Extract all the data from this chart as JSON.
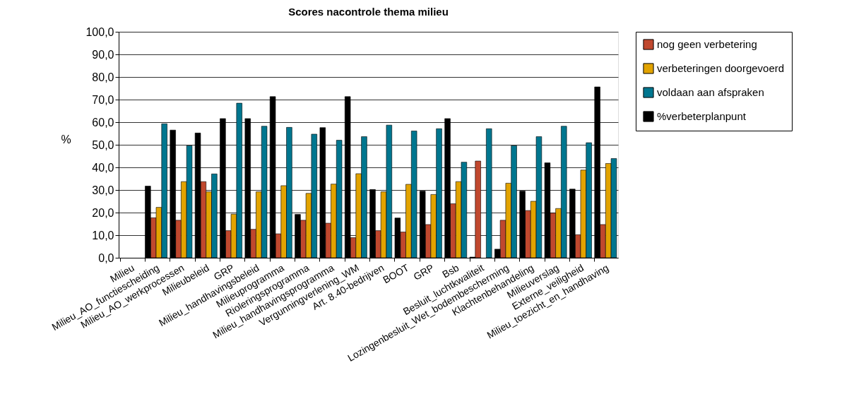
{
  "chart_data": {
    "type": "bar",
    "title": "Scores nacontrole thema milieu",
    "ylabel": "%",
    "categories": [
      "Milieu",
      "Milieu_AO_functiescheiding",
      "Milieu_AO_werkprocessen",
      "Milieubeleid",
      "GRP",
      "Milieu_handhavingsbeleid",
      "Milieuprogramma",
      "Rioleringsprogramma",
      "Milieu_handhavingsprogramma",
      "Vergunningverlening_WM",
      "Art. 8.40-bedrijven",
      "BOOT",
      "GRP",
      "Bsb",
      "Besluit_luchtkwaliteit",
      "Lozingenbesluit_Wet_bodembescherming",
      "Klachtenbehandeling",
      "Milieuverslag",
      "Externe_veiligheid",
      "Milieu_toezicht_en_handhaving"
    ],
    "series": [
      {
        "name": "nog geen verbetering",
        "color": "#c0482e",
        "values": [
          null,
          17.7,
          16.6,
          33.7,
          12.0,
          12.6,
          10.6,
          16.6,
          15.3,
          8.9,
          12.0,
          11.4,
          14.7,
          23.9,
          42.8,
          16.6,
          20.9,
          19.8,
          10.2,
          14.7
        ]
      },
      {
        "name": "verbeteringen doorgevoerd",
        "color": "#e2a300",
        "values": [
          null,
          22.3,
          33.7,
          29.2,
          19.3,
          29.2,
          31.9,
          28.5,
          32.6,
          37.2,
          29.2,
          32.5,
          28.0,
          33.7,
          null,
          33.0,
          25.0,
          21.8,
          38.8,
          41.7
        ]
      },
      {
        "name": "voldaan aan afspraken",
        "color": "#00768f",
        "values": [
          null,
          59.3,
          49.6,
          37.1,
          68.4,
          58.2,
          57.7,
          54.7,
          52.0,
          53.6,
          58.7,
          56.1,
          57.1,
          42.3,
          57.1,
          49.6,
          53.6,
          58.2,
          50.9,
          43.9
        ]
      },
      {
        "name": "%verbeterplanpunt",
        "color": "#000000",
        "values": [
          null,
          31.7,
          56.5,
          55.2,
          61.6,
          61.6,
          71.3,
          19.2,
          57.6,
          71.3,
          30.2,
          17.6,
          29.5,
          61.6,
          0.3,
          3.8,
          29.5,
          42.0,
          30.4,
          75.6
        ]
      }
    ],
    "ylim": [
      0,
      100
    ],
    "yticks": [
      {
        "value": 0,
        "label": "0,0"
      },
      {
        "value": 10,
        "label": "10,0"
      },
      {
        "value": 20,
        "label": "20,0"
      },
      {
        "value": 30,
        "label": "30,0"
      },
      {
        "value": 40,
        "label": "40,0"
      },
      {
        "value": 50,
        "label": "50,0"
      },
      {
        "value": 60,
        "label": "60,0"
      },
      {
        "value": 70,
        "label": "70,0"
      },
      {
        "value": 80,
        "label": "80,0"
      },
      {
        "value": 90,
        "label": "90,0"
      },
      {
        "value": 100,
        "label": "100,0"
      }
    ],
    "grid": "y",
    "legend": "right"
  }
}
